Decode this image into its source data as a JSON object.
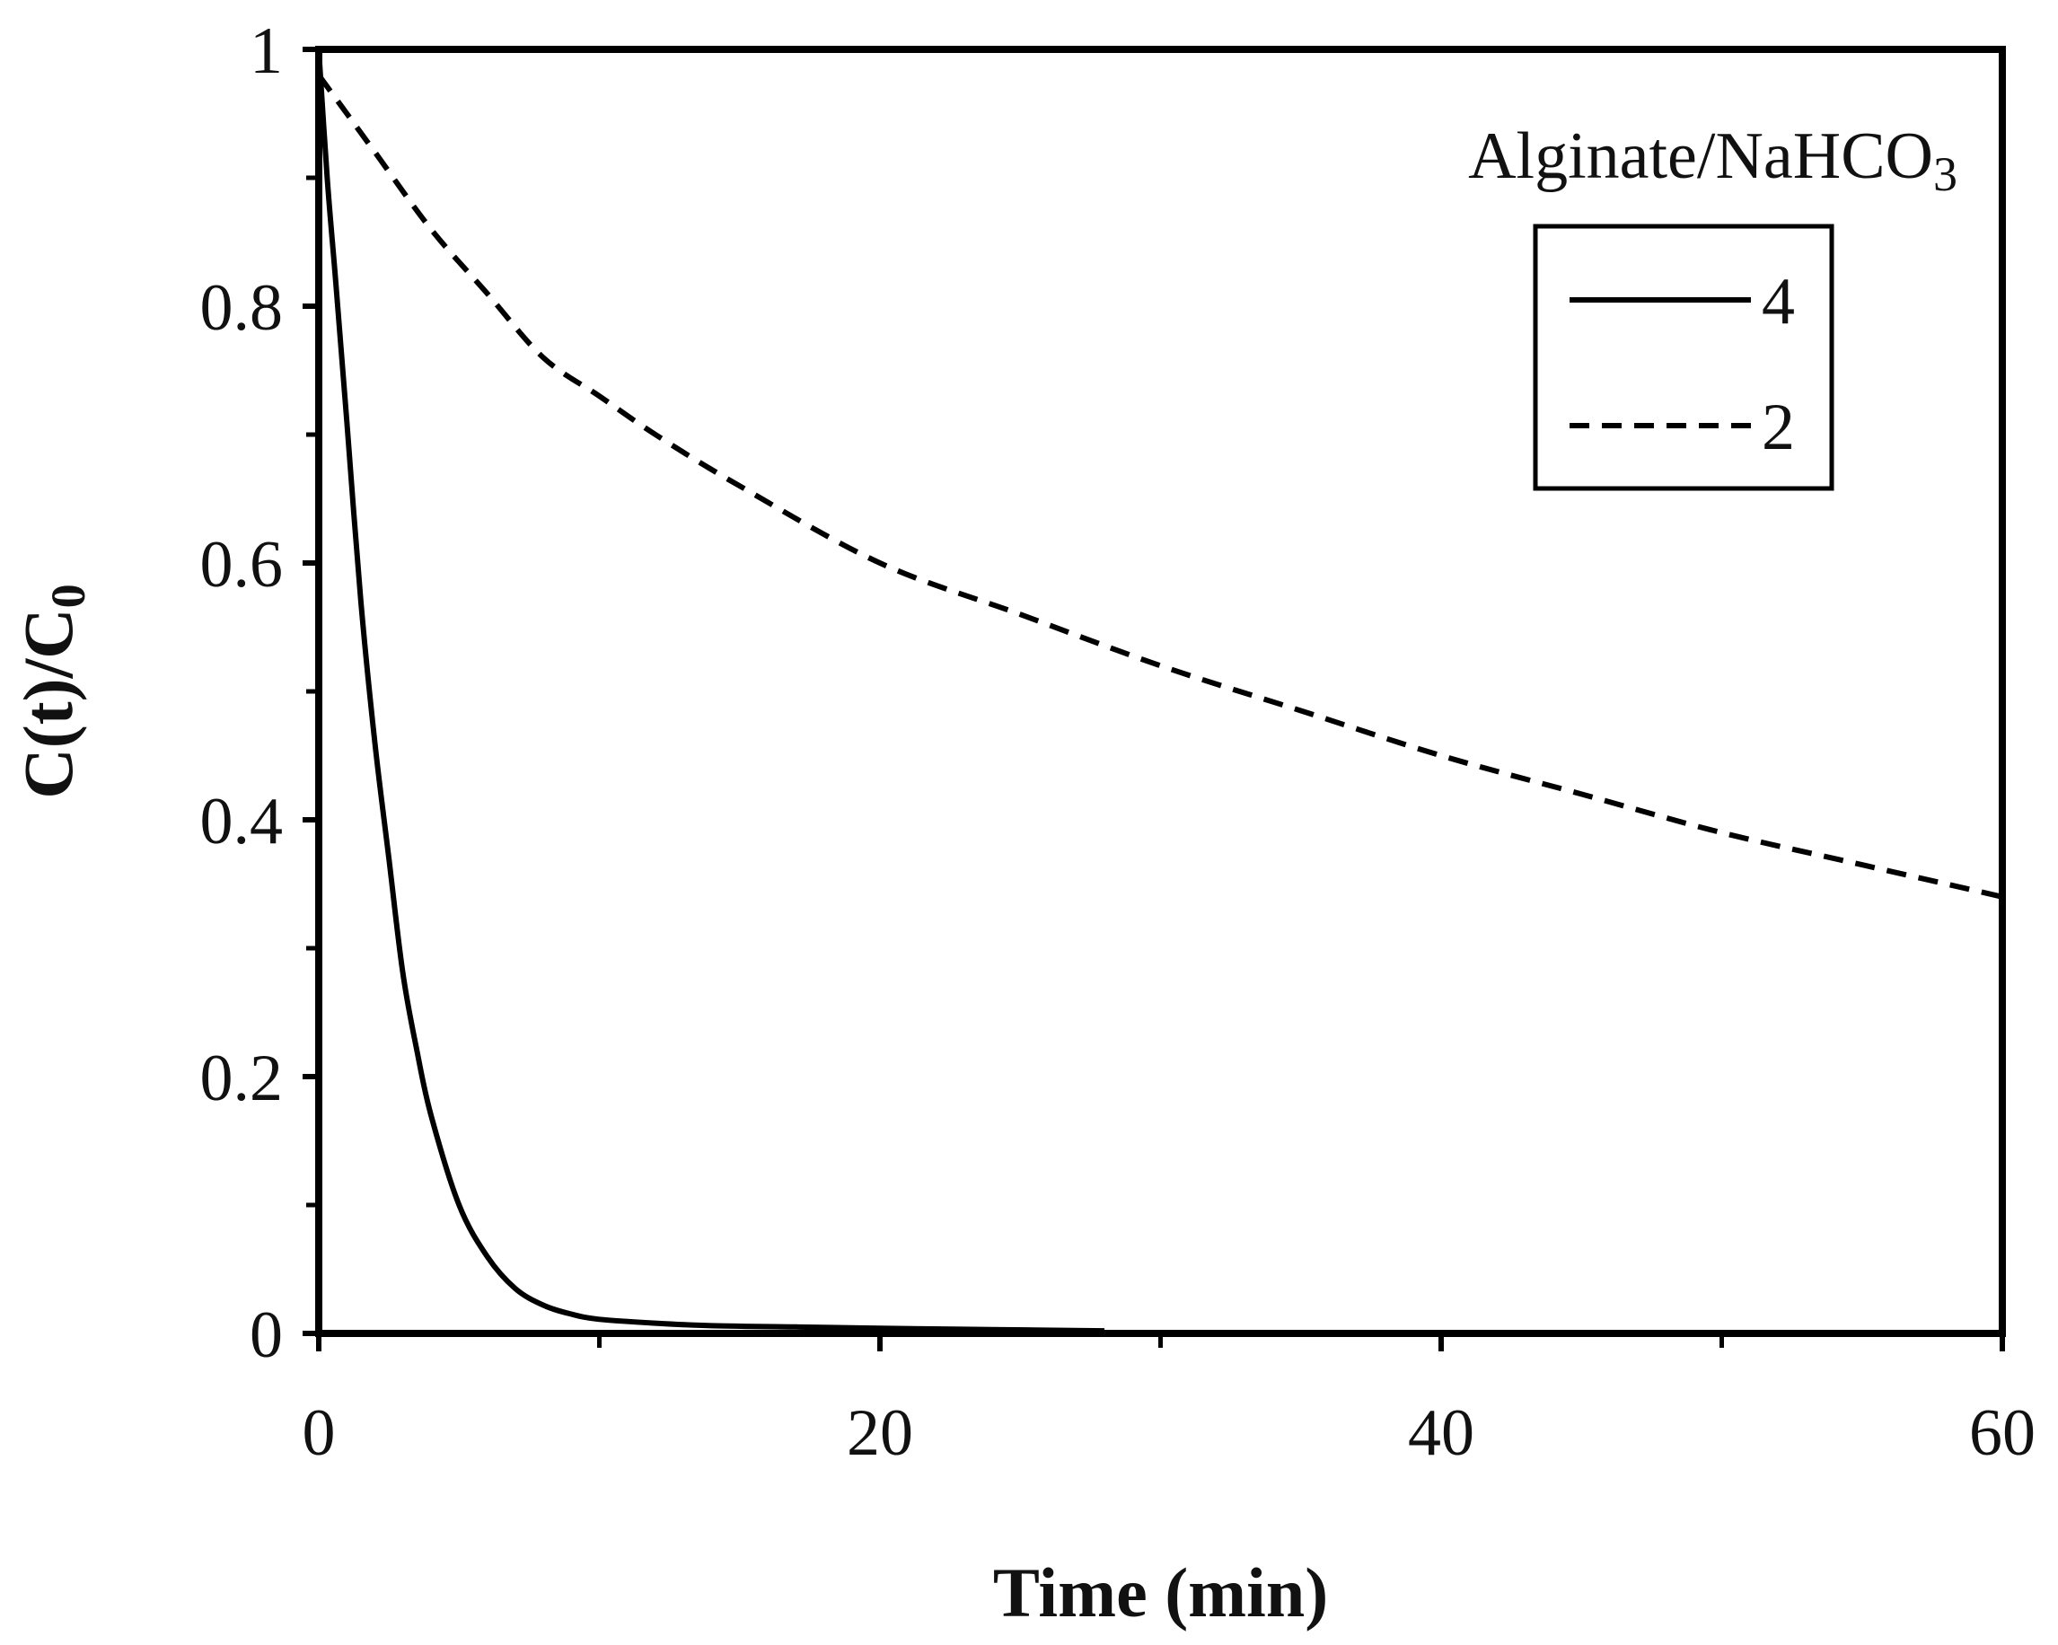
{
  "chart_data": {
    "type": "line",
    "title": "",
    "xlabel": "Time (min)",
    "ylabel_main": "C(t)/C",
    "ylabel_sub": "0",
    "xlim": [
      0,
      60
    ],
    "ylim": [
      0,
      1
    ],
    "x_ticks": [
      0,
      20,
      40,
      60
    ],
    "x_tick_labels": [
      "0",
      "20",
      "40",
      "60"
    ],
    "y_ticks": [
      0,
      0.2,
      0.4,
      0.6,
      0.8,
      1
    ],
    "y_tick_labels": [
      "0",
      "0.2",
      "0.4",
      "0.6",
      "0.8",
      "1"
    ],
    "grid": false,
    "legend": {
      "placement": "top-right",
      "title_main": "Alginate/NaHCO",
      "title_sub": "3"
    },
    "series": [
      {
        "name": "4",
        "style": "solid",
        "color": "#000000",
        "x": [
          0,
          0.3,
          0.6,
          1,
          1.5,
          2,
          2.5,
          3,
          3.5,
          4,
          5,
          6,
          7,
          8,
          9,
          10,
          12,
          14,
          17,
          20,
          24,
          28
        ],
        "y": [
          1.0,
          0.9,
          0.82,
          0.71,
          0.57,
          0.46,
          0.37,
          0.28,
          0.22,
          0.17,
          0.1,
          0.06,
          0.035,
          0.022,
          0.015,
          0.011,
          0.008,
          0.006,
          0.005,
          0.004,
          0.003,
          0.002
        ]
      },
      {
        "name": "2",
        "style": "dashed",
        "color": "#000000",
        "x": [
          0,
          1,
          2,
          4,
          6,
          8,
          10,
          12,
          15,
          20,
          25,
          30,
          35,
          40,
          45,
          50,
          55,
          60
        ],
        "y": [
          0.98,
          0.95,
          0.92,
          0.86,
          0.81,
          0.76,
          0.73,
          0.7,
          0.66,
          0.6,
          0.56,
          0.52,
          0.485,
          0.45,
          0.42,
          0.39,
          0.365,
          0.34
        ]
      }
    ]
  }
}
